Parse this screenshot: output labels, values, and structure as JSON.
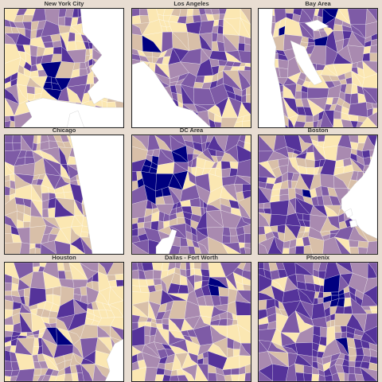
{
  "palette": {
    "q1": "#fbe7b2",
    "q2": "#d8bfa8",
    "q3": "#a98ab0",
    "q4": "#7e5ba6",
    "q5": "#55339a",
    "q6": "#000080",
    "water": "#ffffff",
    "border": "#ffffff"
  },
  "panels": [
    {
      "title": "New York City"
    },
    {
      "title": "Los Angeles"
    },
    {
      "title": "Bay Area"
    },
    {
      "title": "Chicago"
    },
    {
      "title": "DC Area"
    },
    {
      "title": "Boston"
    },
    {
      "title": "Houston"
    },
    {
      "title": "Dallas - Fort Worth"
    },
    {
      "title": "Phoenix"
    }
  ]
}
